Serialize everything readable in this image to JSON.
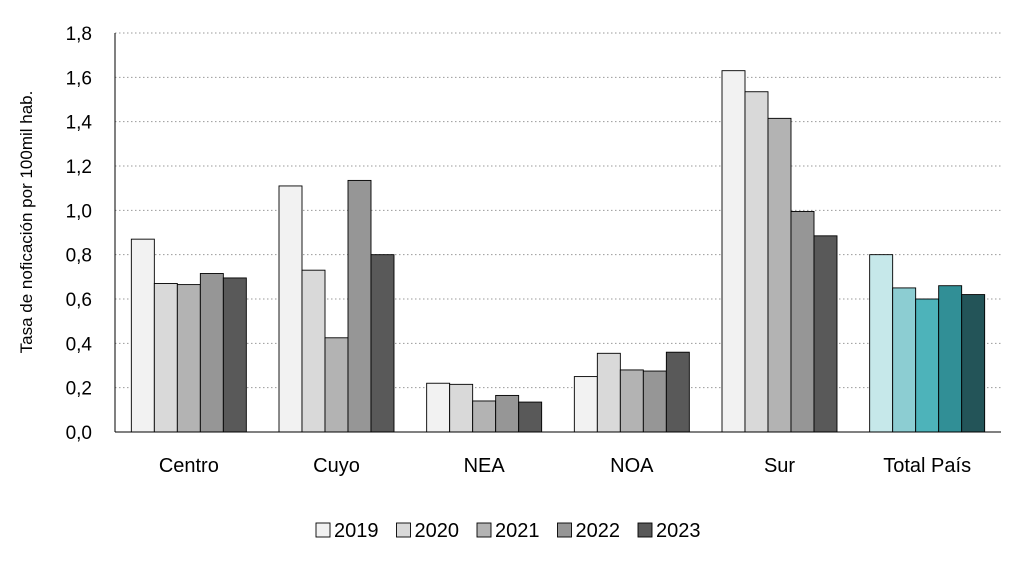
{
  "chart_data": {
    "type": "bar",
    "title": "",
    "xlabel": "",
    "ylabel": "Tasa de noficación por 100mil hab.",
    "ylim": [
      0,
      1.8
    ],
    "ytick_step": 0.2,
    "yticks": [
      "0,0",
      "0,2",
      "0,4",
      "0,6",
      "0,8",
      "1,0",
      "1,2",
      "1,4",
      "1,6",
      "1,8"
    ],
    "grid": "horizontal-dotted",
    "legend_position": "bottom",
    "categories": [
      "Centro",
      "Cuyo",
      "NEA",
      "NOA",
      "Sur",
      "Total País"
    ],
    "series": [
      {
        "name": "2019",
        "color": "#f2f2f2",
        "values": [
          0.87,
          1.11,
          0.22,
          0.25,
          1.63,
          0.8
        ]
      },
      {
        "name": "2020",
        "color": "#d9d9d9",
        "values": [
          0.67,
          0.73,
          0.215,
          0.355,
          1.535,
          0.65
        ]
      },
      {
        "name": "2021",
        "color": "#b3b3b3",
        "values": [
          0.665,
          0.425,
          0.14,
          0.28,
          1.415,
          0.6
        ]
      },
      {
        "name": "2022",
        "color": "#969696",
        "values": [
          0.715,
          1.135,
          0.165,
          0.275,
          0.995,
          0.66
        ]
      },
      {
        "name": "2023",
        "color": "#595959",
        "values": [
          0.695,
          0.8,
          0.135,
          0.36,
          0.885,
          0.62
        ]
      }
    ],
    "highlight_category": "Total País",
    "highlight_colors": [
      "#c6e8ea",
      "#8ccdd2",
      "#4db3ba",
      "#318f96",
      "#235458"
    ]
  }
}
